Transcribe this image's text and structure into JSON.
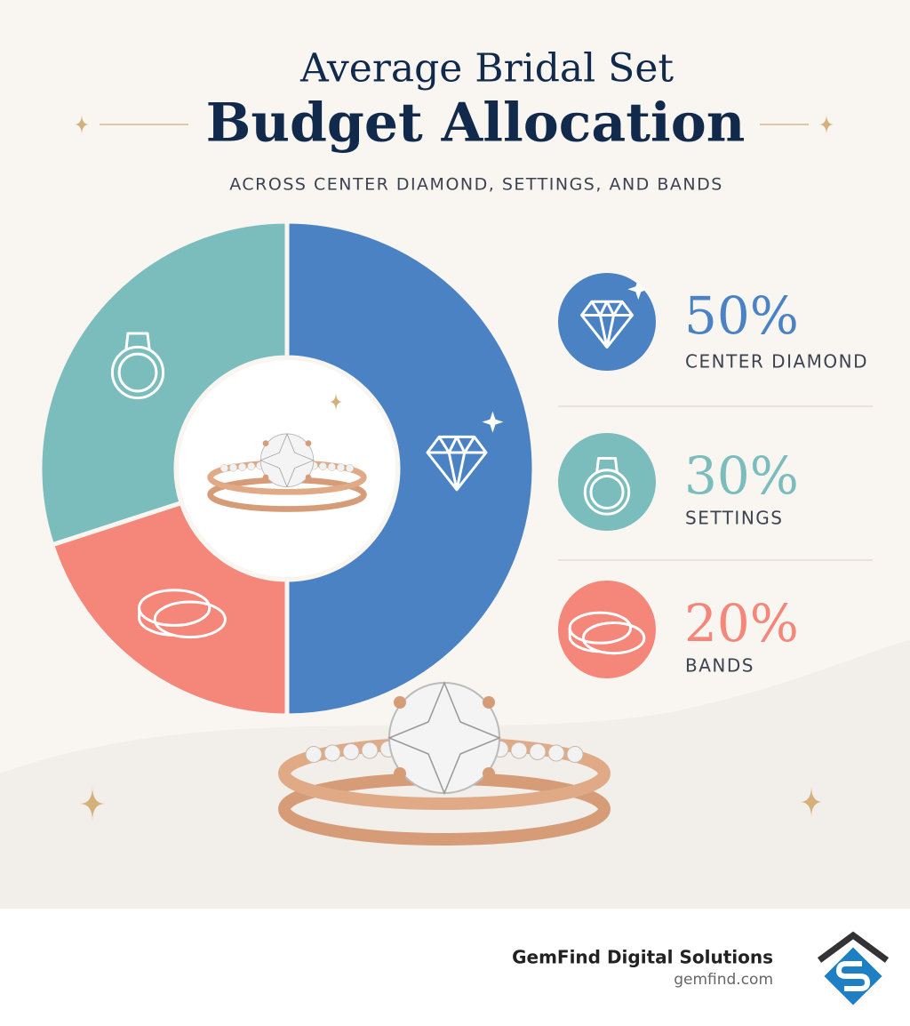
{
  "chart_data": {
    "type": "donut",
    "title_lines": [
      "Average Bridal Set",
      "Budget Allocation"
    ],
    "subtitle": "ACROSS CENTER DIAMOND, SETTINGS, AND BANDS",
    "categories": [
      "CENTER DIAMOND",
      "SETTINGS",
      "BANDS"
    ],
    "values": [
      50,
      30,
      20
    ],
    "value_labels": [
      "50%",
      "30%",
      "20%"
    ],
    "colors": [
      "#4a82c3",
      "#7bbcbc",
      "#f4867a"
    ]
  },
  "footer": {
    "brand": "GemFind Digital Solutions",
    "url": "gemfind.com"
  }
}
